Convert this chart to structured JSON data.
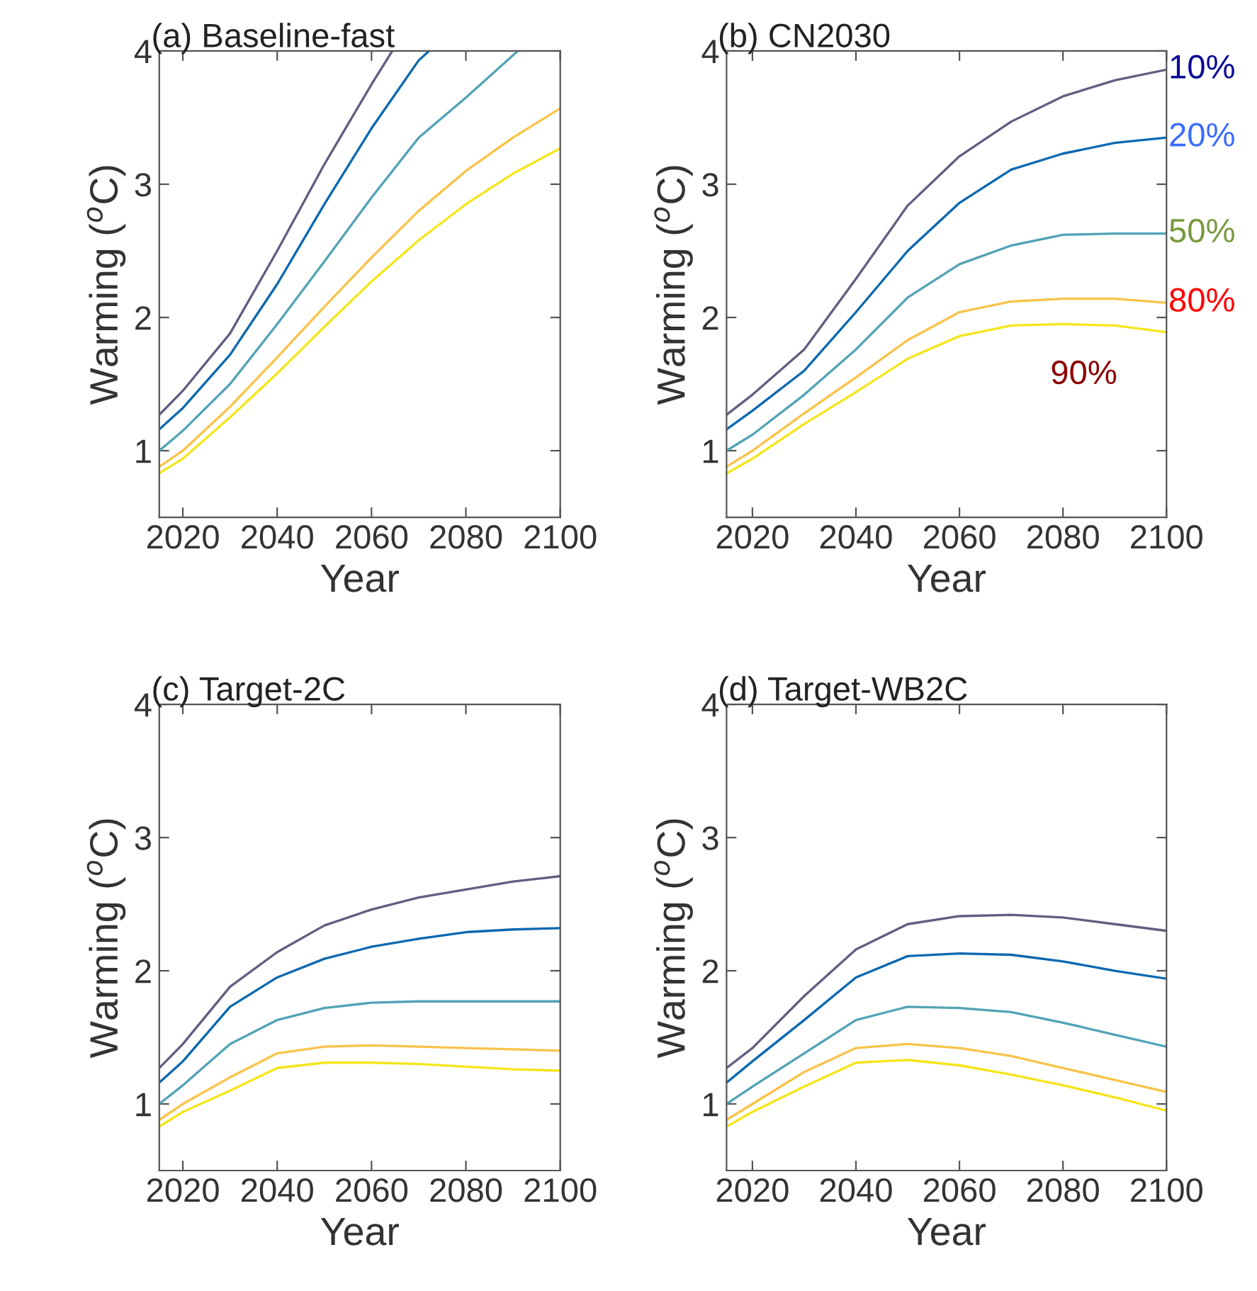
{
  "chart_data": [
    {
      "type": "line",
      "title": "(a) Baseline-fast",
      "xlabel": "Year",
      "ylabel": "Warming ($^{o}$C)",
      "x": [
        2015,
        2020,
        2030,
        2040,
        2050,
        2060,
        2070,
        2080,
        2090,
        2100
      ],
      "xlim": [
        2015,
        2100
      ],
      "ylim": [
        0.5,
        4
      ],
      "xticks": [
        2020,
        2040,
        2060,
        2080,
        2100
      ],
      "yticks": [
        1,
        2,
        3,
        4
      ],
      "grid": false,
      "legend": false,
      "series": [
        {
          "color": "#625e80",
          "x": [
            2015,
            2020,
            2030,
            2040,
            2050,
            2060,
            2064.4
          ],
          "values": [
            1.27,
            1.45,
            1.88,
            2.5,
            3.15,
            3.75,
            4.0
          ]
        },
        {
          "color": "#0b68b0",
          "x": [
            2015,
            2020,
            2030,
            2040,
            2050,
            2060,
            2070,
            2072.2
          ],
          "values": [
            1.16,
            1.32,
            1.72,
            2.25,
            2.85,
            3.42,
            3.93,
            4.0
          ]
        },
        {
          "color": "#52a3b5",
          "x": [
            2015,
            2020,
            2030,
            2040,
            2050,
            2060,
            2070,
            2080,
            2091
          ],
          "values": [
            1.0,
            1.15,
            1.5,
            1.95,
            2.42,
            2.9,
            3.35,
            3.65,
            4.0
          ]
        },
        {
          "color": "#f9c34a",
          "values": [
            0.88,
            1.0,
            1.33,
            1.7,
            2.08,
            2.45,
            2.8,
            3.1,
            3.35,
            3.57
          ]
        },
        {
          "color": "#f5e51b",
          "values": [
            0.83,
            0.94,
            1.25,
            1.58,
            1.93,
            2.27,
            2.58,
            2.85,
            3.08,
            3.27
          ]
        }
      ]
    },
    {
      "type": "line",
      "title": "(b) CN2030",
      "xlabel": "Year",
      "ylabel": "Warming ($^{o}$C)",
      "x": [
        2015,
        2020,
        2030,
        2040,
        2050,
        2060,
        2070,
        2080,
        2090,
        2100
      ],
      "xlim": [
        2015,
        2100
      ],
      "ylim": [
        0.5,
        4
      ],
      "xticks": [
        2020,
        2040,
        2060,
        2080,
        2100
      ],
      "yticks": [
        1,
        2,
        3,
        4
      ],
      "grid": false,
      "legend": false,
      "series": [
        {
          "name": "10%",
          "color": "#625e80",
          "values": [
            1.27,
            1.42,
            1.76,
            2.29,
            2.84,
            3.21,
            3.47,
            3.66,
            3.78,
            3.86
          ]
        },
        {
          "name": "20%",
          "color": "#0b68b0",
          "values": [
            1.16,
            1.3,
            1.6,
            2.04,
            2.5,
            2.86,
            3.11,
            3.23,
            3.31,
            3.35
          ]
        },
        {
          "name": "50%",
          "color": "#52a3b5",
          "values": [
            1.0,
            1.12,
            1.42,
            1.76,
            2.15,
            2.4,
            2.54,
            2.62,
            2.63,
            2.63
          ]
        },
        {
          "name": "80%",
          "color": "#f9c34a",
          "values": [
            0.88,
            1.0,
            1.28,
            1.55,
            1.83,
            2.04,
            2.12,
            2.14,
            2.14,
            2.11
          ]
        },
        {
          "name": "90%",
          "color": "#f5e51b",
          "values": [
            0.83,
            0.94,
            1.2,
            1.44,
            1.69,
            1.86,
            1.94,
            1.95,
            1.94,
            1.89
          ]
        }
      ]
    },
    {
      "type": "line",
      "title": "(c) Target-2C",
      "xlabel": "Year",
      "ylabel": "Warming ($^{o}$C)",
      "x": [
        2015,
        2020,
        2030,
        2040,
        2050,
        2060,
        2070,
        2080,
        2090,
        2100
      ],
      "xlim": [
        2015,
        2100
      ],
      "ylim": [
        0.5,
        4
      ],
      "xticks": [
        2020,
        2040,
        2060,
        2080,
        2100
      ],
      "yticks": [
        1,
        2,
        3,
        4
      ],
      "grid": false,
      "legend": false,
      "series": [
        {
          "color": "#625e80",
          "values": [
            1.27,
            1.45,
            1.88,
            2.14,
            2.34,
            2.46,
            2.55,
            2.61,
            2.67,
            2.71
          ]
        },
        {
          "color": "#0b68b0",
          "values": [
            1.16,
            1.32,
            1.73,
            1.95,
            2.09,
            2.18,
            2.24,
            2.29,
            2.31,
            2.32
          ]
        },
        {
          "color": "#52a3b5",
          "values": [
            1.0,
            1.14,
            1.45,
            1.63,
            1.72,
            1.76,
            1.77,
            1.77,
            1.77,
            1.77
          ]
        },
        {
          "color": "#f9c34a",
          "values": [
            0.88,
            1.0,
            1.2,
            1.38,
            1.43,
            1.44,
            1.43,
            1.42,
            1.41,
            1.4
          ]
        },
        {
          "color": "#f5e51b",
          "values": [
            0.83,
            0.94,
            1.1,
            1.27,
            1.31,
            1.31,
            1.3,
            1.28,
            1.26,
            1.25
          ]
        }
      ]
    },
    {
      "type": "line",
      "title": "(d) Target-WB2C",
      "xlabel": "Year",
      "ylabel": "Warming ($^{o}$C)",
      "x": [
        2015,
        2020,
        2030,
        2040,
        2050,
        2060,
        2070,
        2080,
        2090,
        2100
      ],
      "xlim": [
        2015,
        2100
      ],
      "ylim": [
        0.5,
        4
      ],
      "xticks": [
        2020,
        2040,
        2060,
        2080,
        2100
      ],
      "yticks": [
        1,
        2,
        3,
        4
      ],
      "grid": false,
      "legend": false,
      "series": [
        {
          "color": "#625e80",
          "values": [
            1.27,
            1.42,
            1.81,
            2.16,
            2.35,
            2.41,
            2.42,
            2.4,
            2.35,
            2.3
          ]
        },
        {
          "color": "#0b68b0",
          "values": [
            1.16,
            1.32,
            1.63,
            1.95,
            2.11,
            2.13,
            2.12,
            2.07,
            2.0,
            1.94
          ]
        },
        {
          "color": "#52a3b5",
          "values": [
            1.0,
            1.13,
            1.38,
            1.63,
            1.73,
            1.72,
            1.69,
            1.61,
            1.52,
            1.43
          ]
        },
        {
          "color": "#f9c34a",
          "values": [
            0.88,
            1.0,
            1.24,
            1.42,
            1.45,
            1.42,
            1.36,
            1.27,
            1.18,
            1.09
          ]
        },
        {
          "color": "#f5e51b",
          "values": [
            0.83,
            0.94,
            1.13,
            1.31,
            1.33,
            1.29,
            1.22,
            1.14,
            1.05,
            0.95
          ]
        }
      ]
    }
  ]
}
